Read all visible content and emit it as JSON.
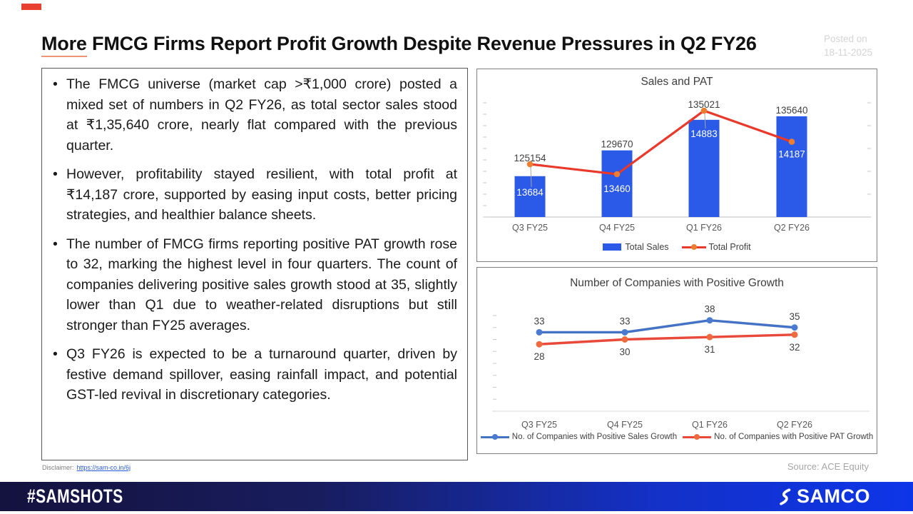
{
  "meta": {
    "posted_label": "Posted on",
    "posted_date": "18-11-2025"
  },
  "title": {
    "lead": "More",
    "rest": " FMCG Firms Report Profit Growth Despite Revenue Pressures in Q2 FY26"
  },
  "bullets": [
    "The FMCG universe (market cap >₹1,000 crore) posted a mixed set of numbers in Q2 FY26, as total sector sales stood at ₹1,35,640 crore, nearly flat compared with the previous quarter.",
    "However, profitability stayed resilient, with total profit at ₹14,187 crore, supported by easing input costs, better pricing strategies, and healthier balance sheets.",
    "The number of FMCG firms reporting positive PAT growth rose to 32, marking the highest level in four quarters. The count of companies delivering positive sales growth stood at 35, slightly lower than Q1 due to weather-related disruptions but still stronger than FY25 averages.",
    "Q3 FY26 is expected to be a turnaround quarter, driven by festive demand spillover, easing rainfall impact, and potential GST-led revival in discretionary categories."
  ],
  "disclaimer": {
    "label": "Disclaimer:",
    "link": "https://sam-co.in/6j"
  },
  "source": "Source: ACE Equity",
  "footer": {
    "hashtag": "#SAMSHOTS",
    "brand": "SAMCO"
  },
  "chart_data": [
    {
      "type": "bar",
      "title": "Sales and PAT",
      "categories": [
        "Q3 FY25",
        "Q4 FY25",
        "Q1 FY26",
        "Q2 FY26"
      ],
      "series": [
        {
          "name": "Total Sales",
          "type": "bar",
          "axis": "left",
          "color": "#2b59e8",
          "values": [
            125154,
            129670,
            135021,
            135640
          ]
        },
        {
          "name": "Total Profit",
          "type": "line",
          "axis": "right",
          "color": "#e8392b",
          "marker_color": "#ed7d31",
          "values": [
            13684,
            13460,
            14883,
            14187
          ]
        }
      ],
      "left_axis": {
        "min": 118000,
        "max": 138000,
        "ticks": 11
      },
      "right_axis": {
        "min": 12500,
        "max": 15060,
        "ticks": 6
      },
      "grid": false,
      "legend_position": "bottom"
    },
    {
      "type": "line",
      "title": "Number of Companies with Positive Growth",
      "categories": [
        "Q3 FY25",
        "Q4 FY25",
        "Q1 FY26",
        "Q2 FY26"
      ],
      "series": [
        {
          "name": "No. of Companies with Positive Sales Growth",
          "color": "#4472c4",
          "marker_color": "#4a7bd0",
          "values": [
            33,
            33,
            38,
            35
          ]
        },
        {
          "name": "No. of Companies with Positive PAT Growth",
          "color": "#e8493a",
          "marker_color": "#ed6b3f",
          "values": [
            28,
            30,
            31,
            32
          ]
        }
      ],
      "y_axis": {
        "min": 0,
        "max": 40,
        "ticks": 9
      },
      "grid": false,
      "legend_position": "bottom"
    }
  ]
}
